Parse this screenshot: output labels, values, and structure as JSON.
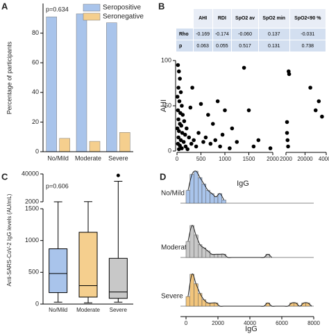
{
  "chart_data": [
    {
      "type": "bar",
      "panel": "A",
      "annotation": "p=0.634",
      "ylabel": "Percentage of participants",
      "categories": [
        "No/Mild",
        "Moderate",
        "Severe"
      ],
      "series": [
        {
          "name": "Seropositive",
          "color": "#a9c4eb",
          "values": [
            91,
            93,
            87
          ]
        },
        {
          "name": "Seronegative",
          "color": "#f5cf8e",
          "values": [
            9,
            7,
            13
          ]
        }
      ],
      "ylim": [
        0,
        100
      ],
      "yticks": [
        0,
        20,
        40,
        60,
        80
      ],
      "legend": "top-right"
    },
    {
      "type": "scatter",
      "panel": "B",
      "xlabel": "IgG",
      "ylabel": "AHI",
      "table": {
        "columns": [
          "AHI",
          "RDI",
          "SpO2 av",
          "SpO2 min",
          "SpO2<90 %"
        ],
        "rows": [
          {
            "name": "Rho",
            "cells": [
              "-0.169",
              "-0.174",
              "-0.060",
              "0.137",
              "-0.031"
            ]
          },
          {
            "name": "p",
            "cells": [
              "0.063",
              "0.055",
              "0.517",
              "0.131",
              "0.738"
            ]
          }
        ]
      },
      "x_segments": [
        {
          "xlim": [
            0,
            2000
          ],
          "xticks": [
            0,
            500,
            1000,
            1500,
            2000
          ]
        },
        {
          "xlim": [
            2000,
            40000
          ],
          "xticks": [
            2000,
            20000,
            40000
          ]
        }
      ],
      "ylim": [
        0,
        100
      ],
      "yticks": [
        0,
        50,
        100
      ],
      "color": "#000000",
      "x": [
        20,
        40,
        60,
        30,
        80,
        10,
        50,
        100,
        20,
        70,
        120,
        30,
        150,
        60,
        90,
        10,
        200,
        40,
        110,
        170,
        30,
        250,
        80,
        140,
        20,
        60,
        180,
        100,
        40,
        220,
        300,
        350,
        280,
        320,
        400,
        450,
        500,
        550,
        600,
        650,
        700,
        750,
        800,
        850,
        900,
        950,
        1000,
        1100,
        1150,
        1250,
        1400,
        1500,
        1600,
        1700,
        1950,
        3000,
        3500,
        4000,
        4500,
        5000,
        3000,
        25000,
        30000,
        33000,
        36000
      ],
      "y": [
        95,
        88,
        80,
        70,
        65,
        60,
        55,
        50,
        45,
        42,
        40,
        35,
        33,
        30,
        28,
        25,
        25,
        22,
        20,
        18,
        15,
        15,
        12,
        10,
        8,
        6,
        5,
        3,
        2,
        2,
        8,
        12,
        48,
        70,
        5,
        20,
        52,
        10,
        15,
        40,
        8,
        30,
        12,
        55,
        5,
        18,
        45,
        3,
        25,
        10,
        92,
        45,
        5,
        12,
        3,
        20,
        12,
        5,
        88,
        85,
        32,
        70,
        45,
        55,
        38
      ]
    },
    {
      "type": "box",
      "panel": "C",
      "annotation": "p=0.606",
      "ylabel": "Anti-SARS-CoV-2 IgG levels (AU/mL)",
      "y_segments": [
        {
          "ylim": [
            0,
            1500
          ],
          "yticks": [
            0,
            500,
            1000,
            1500
          ]
        },
        {
          "ylim": [
            2000,
            40000
          ],
          "yticks": [
            2000,
            40000
          ]
        }
      ],
      "boxes": [
        {
          "name": "No/Mild",
          "color": "#a9c4eb",
          "whisker_low": 30,
          "q1": 180,
          "median": 480,
          "q3": 870,
          "whisker_high": 2000
        },
        {
          "name": "Moderate",
          "color": "#f5cf8e",
          "whisker_low": 20,
          "q1": 110,
          "median": 290,
          "q3": 1130,
          "whisker_high": 2200
        },
        {
          "name": "Severe",
          "color": "#c8c8c8",
          "whisker_low": 30,
          "q1": 90,
          "median": 190,
          "q3": 720,
          "whisker_high": 30000,
          "outliers": [
            38000
          ]
        }
      ]
    },
    {
      "type": "ridgeline",
      "panel": "D",
      "xlabel": "IgG",
      "xlim": [
        0,
        8000
      ],
      "xticks": [
        0,
        2000,
        4000,
        6000,
        8000
      ],
      "groups": [
        {
          "name": "No/Mild",
          "color": "#a9c4eb",
          "bins": [
            0,
            250,
            500,
            750,
            1000,
            1250,
            1500,
            1750,
            2000,
            2250,
            2500
          ],
          "counts": [
            4,
            9,
            10,
            8,
            6,
            4,
            3,
            2,
            3,
            1
          ]
        },
        {
          "name": "Moderate",
          "color": "#c8c8c8",
          "bins": [
            0,
            250,
            500,
            750,
            1000,
            1250,
            1500,
            1750,
            2000,
            2250,
            2500,
            2750,
            3000,
            3250,
            3500,
            3750,
            4000,
            4250,
            4500,
            4750,
            5000,
            5250,
            5500
          ],
          "counts": [
            5,
            10,
            7,
            4,
            3,
            2,
            1,
            1,
            1,
            1,
            0,
            0,
            0,
            0,
            0,
            0,
            0,
            0,
            0,
            0,
            1,
            0
          ]
        },
        {
          "name": "Severe",
          "color": "#f2c57c",
          "bins": [
            0,
            250,
            500,
            750,
            1000,
            1250,
            1500,
            1750,
            2000,
            2250,
            2500,
            2750,
            3000,
            3250,
            3500,
            3750,
            4000,
            4250,
            4500,
            4750,
            5000,
            5250,
            5500,
            5750,
            6000,
            6250,
            6500,
            6750,
            7000,
            7250,
            7500,
            7750,
            8000
          ],
          "counts": [
            3,
            10,
            7,
            4,
            2,
            1,
            1,
            1,
            0,
            0,
            0,
            0,
            0,
            0,
            0,
            0,
            0,
            0,
            0,
            0,
            1,
            0,
            0,
            0,
            0,
            0,
            1,
            1,
            0,
            1,
            1,
            0
          ]
        }
      ]
    }
  ]
}
